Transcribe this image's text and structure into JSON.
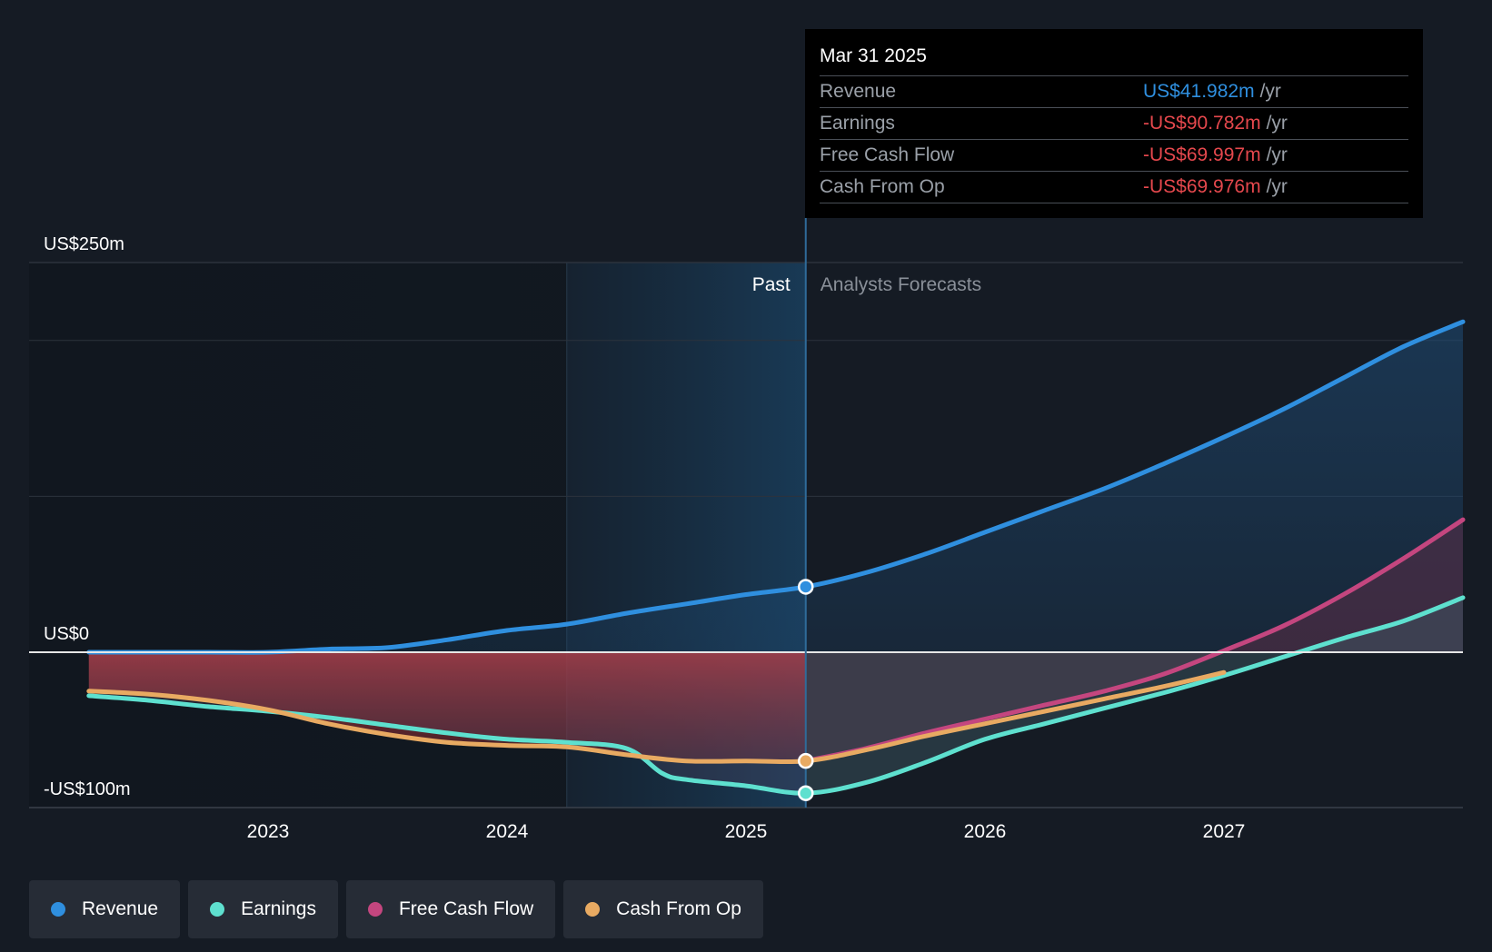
{
  "chart_data": {
    "type": "area",
    "title": "",
    "y_axis": {
      "labels": [
        "US$250m",
        "US$0",
        "-US$100m"
      ],
      "range": [
        -100,
        250
      ],
      "unit": "US$m"
    },
    "x_axis": {
      "labels": [
        "2023",
        "2024",
        "2025",
        "2026",
        "2027"
      ]
    },
    "regions": {
      "past_label": "Past",
      "forecast_label": "Analysts Forecasts",
      "divider_x": 2025.25
    },
    "series": [
      {
        "name": "Revenue",
        "color": "#2f8fdf",
        "points": [
          [
            2022.25,
            0
          ],
          [
            2022.5,
            0
          ],
          [
            2022.75,
            0
          ],
          [
            2023.0,
            0
          ],
          [
            2023.25,
            2
          ],
          [
            2023.5,
            3
          ],
          [
            2023.75,
            8
          ],
          [
            2024.0,
            14
          ],
          [
            2024.25,
            18
          ],
          [
            2024.5,
            25
          ],
          [
            2024.75,
            31
          ],
          [
            2025.0,
            37
          ],
          [
            2025.25,
            41.982
          ],
          [
            2025.5,
            51
          ],
          [
            2025.75,
            63
          ],
          [
            2026.0,
            77
          ],
          [
            2026.25,
            91
          ],
          [
            2026.5,
            105
          ],
          [
            2026.75,
            121
          ],
          [
            2027.0,
            138
          ],
          [
            2027.25,
            156
          ],
          [
            2027.5,
            176
          ],
          [
            2027.75,
            196
          ],
          [
            2028.0,
            212
          ]
        ]
      },
      {
        "name": "Earnings",
        "color": "#5ee0cf",
        "points": [
          [
            2022.25,
            -28
          ],
          [
            2022.5,
            -31
          ],
          [
            2022.75,
            -35
          ],
          [
            2023.0,
            -38
          ],
          [
            2023.25,
            -42
          ],
          [
            2023.5,
            -47
          ],
          [
            2023.75,
            -52
          ],
          [
            2024.0,
            -56
          ],
          [
            2024.25,
            -58
          ],
          [
            2024.5,
            -62
          ],
          [
            2024.65,
            -78
          ],
          [
            2024.75,
            -82
          ],
          [
            2025.0,
            -86
          ],
          [
            2025.25,
            -90.782
          ],
          [
            2025.5,
            -84
          ],
          [
            2025.75,
            -71
          ],
          [
            2026.0,
            -56
          ],
          [
            2026.25,
            -46
          ],
          [
            2026.5,
            -36
          ],
          [
            2026.75,
            -26
          ],
          [
            2027.0,
            -15
          ],
          [
            2027.25,
            -3
          ],
          [
            2027.5,
            9
          ],
          [
            2027.75,
            20
          ],
          [
            2028.0,
            35
          ]
        ]
      },
      {
        "name": "Free Cash Flow",
        "color": "#c4467f",
        "points": [
          [
            2025.25,
            -69.997
          ],
          [
            2025.5,
            -62
          ],
          [
            2025.75,
            -52
          ],
          [
            2026.0,
            -43
          ],
          [
            2026.25,
            -34
          ],
          [
            2026.5,
            -25
          ],
          [
            2026.75,
            -14
          ],
          [
            2027.0,
            1
          ],
          [
            2027.25,
            17
          ],
          [
            2027.5,
            37
          ],
          [
            2027.75,
            60
          ],
          [
            2028.0,
            85
          ]
        ]
      },
      {
        "name": "Cash From Op",
        "color": "#e8aa62",
        "points": [
          [
            2022.25,
            -25
          ],
          [
            2022.5,
            -27
          ],
          [
            2022.75,
            -31
          ],
          [
            2023.0,
            -37
          ],
          [
            2023.25,
            -46
          ],
          [
            2023.5,
            -53
          ],
          [
            2023.75,
            -58
          ],
          [
            2024.0,
            -60
          ],
          [
            2024.25,
            -61
          ],
          [
            2024.5,
            -66
          ],
          [
            2024.75,
            -70
          ],
          [
            2025.0,
            -70
          ],
          [
            2025.25,
            -69.976
          ],
          [
            2025.5,
            -63
          ],
          [
            2025.75,
            -54
          ],
          [
            2026.0,
            -46
          ],
          [
            2026.25,
            -38
          ],
          [
            2026.5,
            -30
          ],
          [
            2026.75,
            -22
          ],
          [
            2027.0,
            -13
          ]
        ]
      }
    ],
    "highlight": {
      "x": 2025.25
    }
  },
  "tooltip": {
    "date": "Mar 31 2025",
    "unit": "/yr",
    "rows": [
      {
        "label": "Revenue",
        "value": "US$41.982m",
        "color": "#2f8fdf"
      },
      {
        "label": "Earnings",
        "value": "-US$90.782m",
        "color": "#e5484d"
      },
      {
        "label": "Free Cash Flow",
        "value": "-US$69.997m",
        "color": "#e5484d"
      },
      {
        "label": "Cash From Op",
        "value": "-US$69.976m",
        "color": "#e5484d"
      }
    ]
  },
  "legend": [
    {
      "label": "Revenue",
      "color": "#2f8fdf"
    },
    {
      "label": "Earnings",
      "color": "#5ee0cf"
    },
    {
      "label": "Free Cash Flow",
      "color": "#c4467f"
    },
    {
      "label": "Cash From Op",
      "color": "#e8aa62"
    }
  ]
}
